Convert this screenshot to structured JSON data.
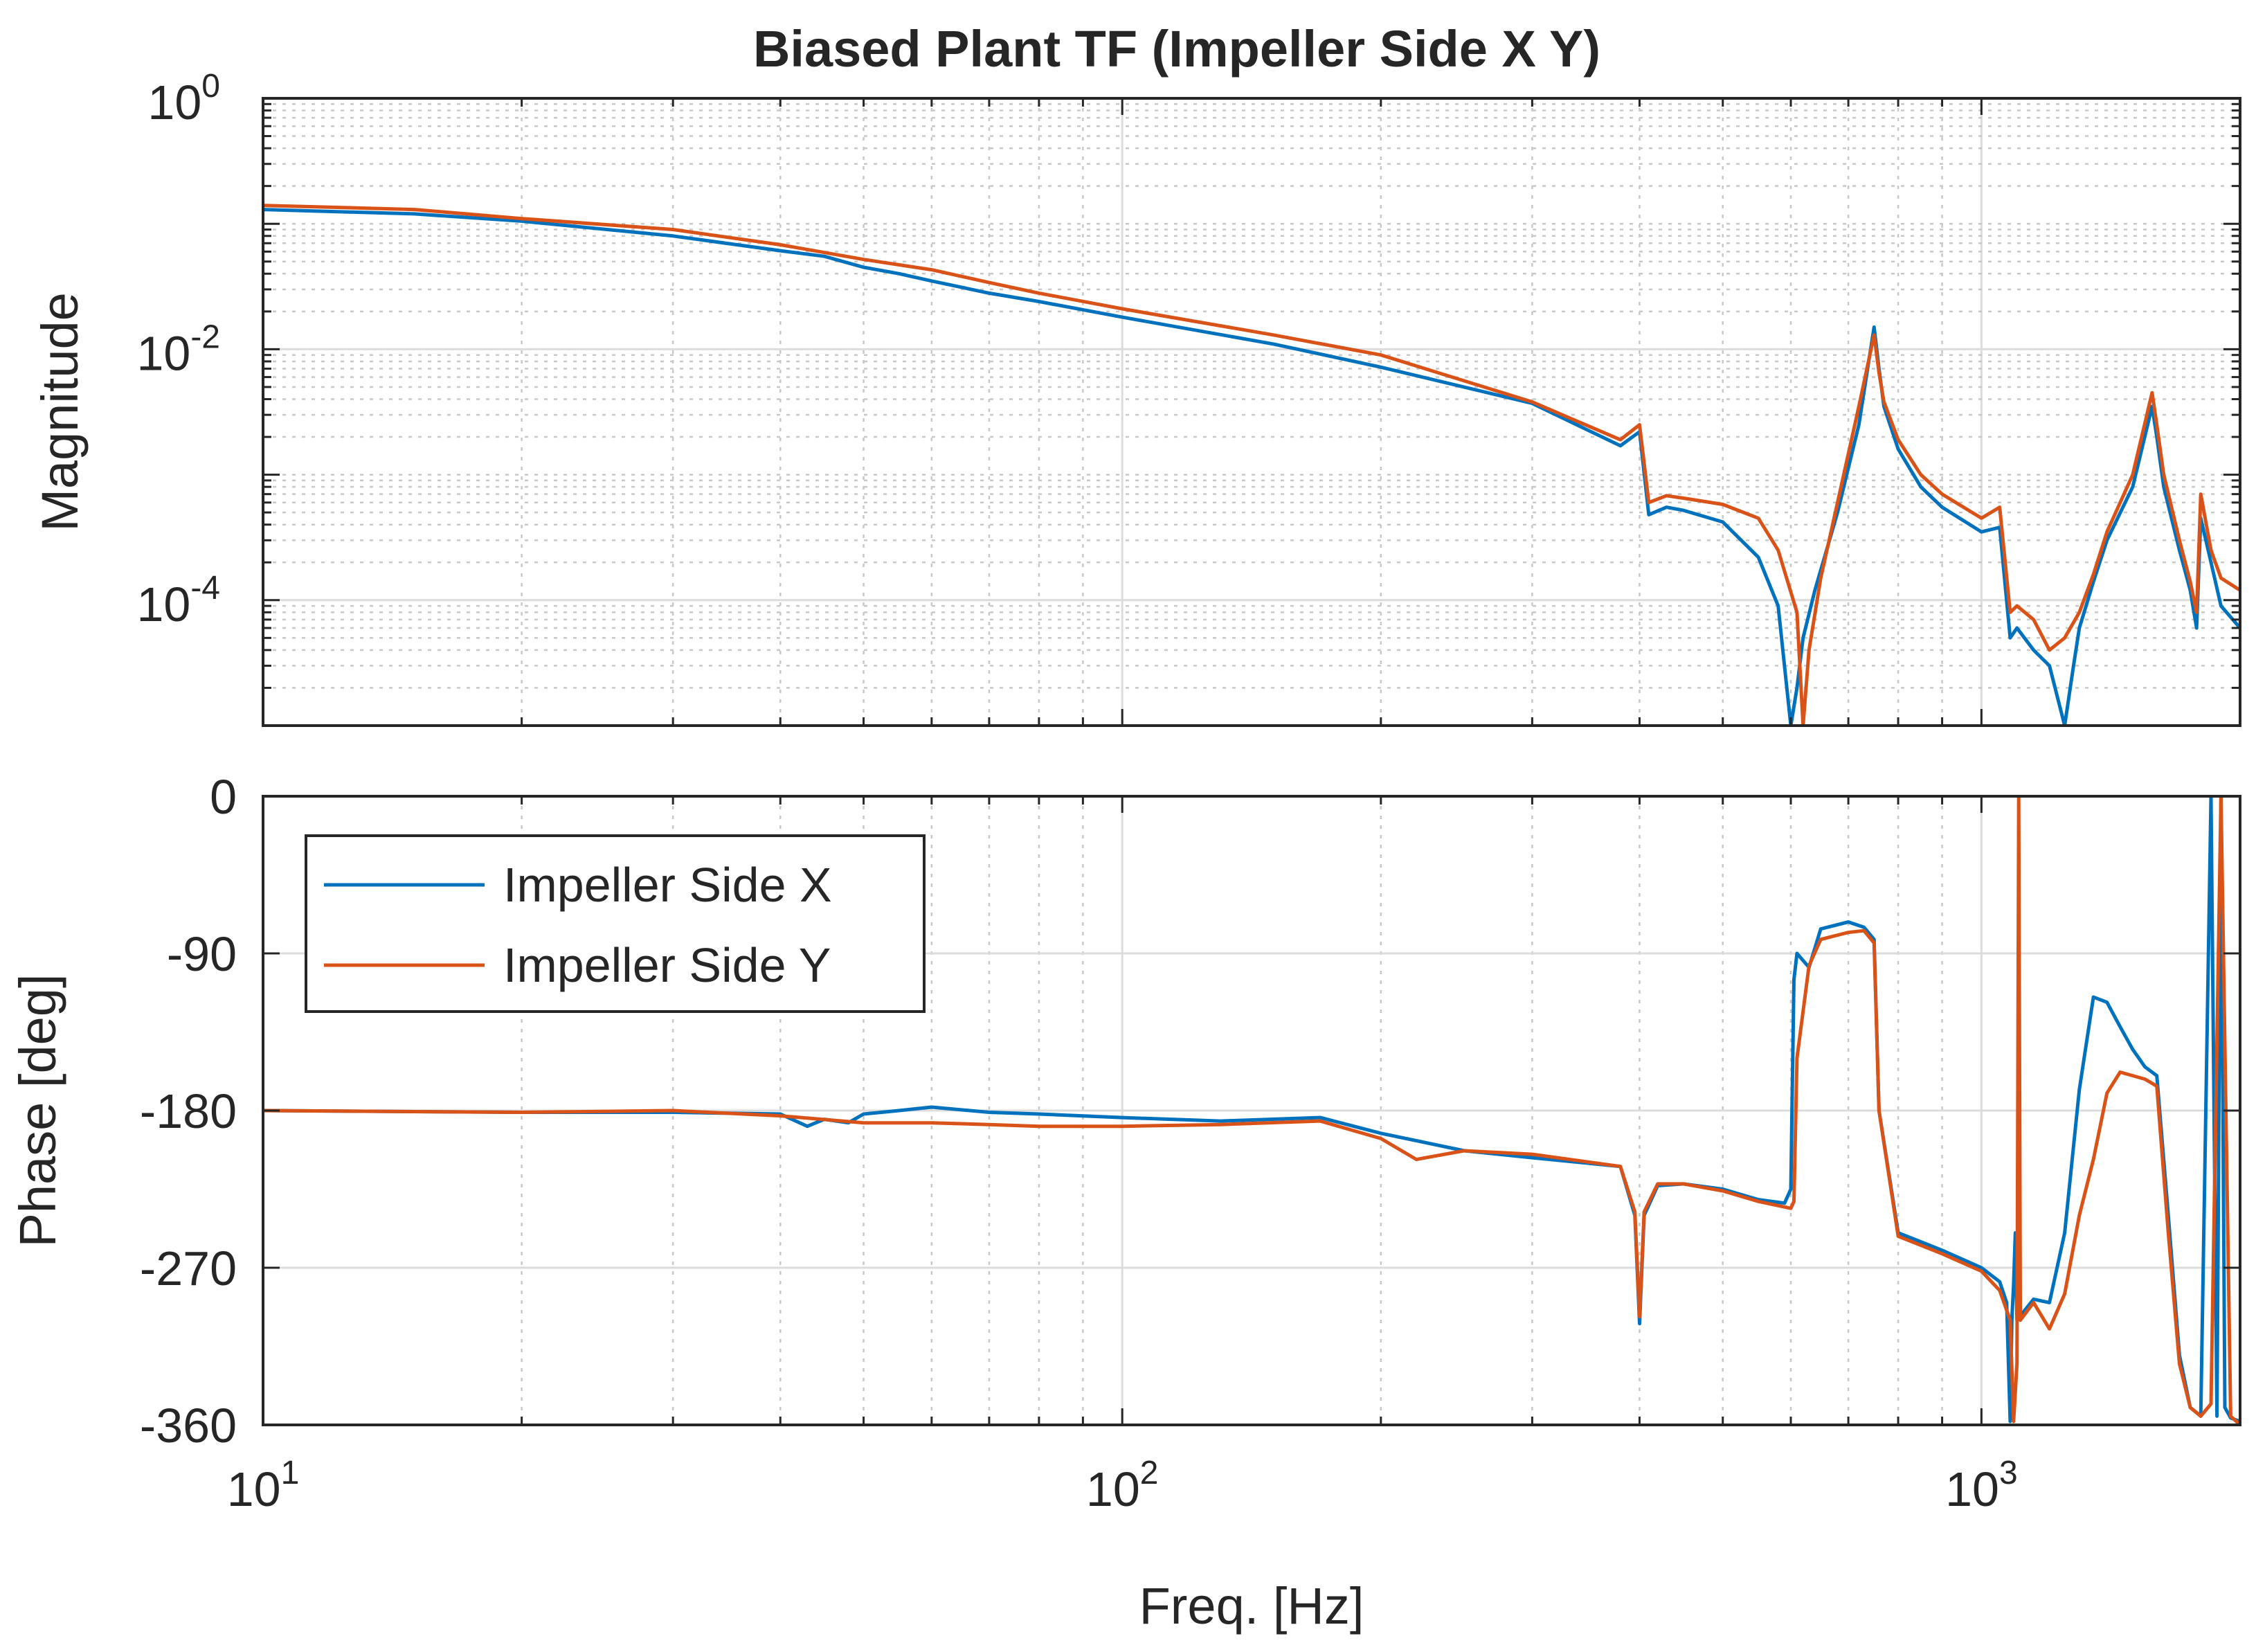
{
  "chart_data": [
    {
      "type": "line",
      "title": "Biased Plant TF (Impeller Side X Y)",
      "xlabel": "",
      "ylabel": "Magnitude",
      "xscale": "log",
      "yscale": "log",
      "xlim": [
        10,
        2000
      ],
      "ylim": [
        1e-05,
        1
      ],
      "grid": true,
      "y_ticks": [
        {
          "value": 1,
          "label": "10",
          "exp": "0"
        },
        {
          "value": 0.01,
          "label": "10",
          "exp": "-2"
        },
        {
          "value": 0.0001,
          "label": "10",
          "exp": "-4"
        }
      ],
      "series": [
        {
          "name": "Impeller Side X",
          "color": "#0072BD",
          "x": [
            10,
            15,
            20,
            30,
            40,
            45,
            50,
            55,
            60,
            70,
            80,
            100,
            150,
            200,
            300,
            380,
            400,
            410,
            430,
            450,
            500,
            550,
            580,
            600,
            610,
            620,
            640,
            680,
            720,
            750,
            760,
            770,
            800,
            850,
            900,
            1000,
            1050,
            1080,
            1100,
            1150,
            1200,
            1250,
            1280,
            1300,
            1350,
            1400,
            1500,
            1580,
            1600,
            1630,
            1700,
            1750,
            1780,
            1800,
            1850,
            1900,
            2000
          ],
          "y": [
            0.13,
            0.12,
            0.105,
            0.08,
            0.061,
            0.055,
            0.045,
            0.04,
            0.035,
            0.028,
            0.024,
            0.018,
            0.011,
            0.0072,
            0.0037,
            0.0017,
            0.0022,
            0.00048,
            0.00055,
            0.00052,
            0.00042,
            0.00022,
            9e-05,
            1e-05,
            2e-05,
            5e-05,
            0.00012,
            0.0005,
            0.0025,
            0.015,
            0.007,
            0.0035,
            0.0016,
            0.0008,
            0.00055,
            0.00035,
            0.00038,
            5e-05,
            6e-05,
            4e-05,
            3e-05,
            1e-05,
            3e-05,
            6e-05,
            0.00014,
            0.0003,
            0.0008,
            0.0035,
            0.002,
            0.0008,
            0.00025,
            0.00012,
            6e-05,
            0.00045,
            0.0002,
            9e-05,
            6e-05
          ]
        },
        {
          "name": "Impeller Side Y",
          "color": "#D95319",
          "x": [
            10,
            15,
            20,
            30,
            40,
            50,
            60,
            70,
            80,
            100,
            150,
            200,
            300,
            380,
            400,
            410,
            430,
            450,
            500,
            550,
            580,
            610,
            620,
            630,
            650,
            680,
            720,
            750,
            760,
            770,
            800,
            850,
            900,
            1000,
            1050,
            1080,
            1100,
            1150,
            1200,
            1250,
            1300,
            1350,
            1400,
            1500,
            1580,
            1600,
            1630,
            1700,
            1750,
            1780,
            1800,
            1850,
            1900,
            2000
          ],
          "y": [
            0.14,
            0.13,
            0.11,
            0.09,
            0.068,
            0.052,
            0.043,
            0.034,
            0.028,
            0.021,
            0.013,
            0.009,
            0.0038,
            0.0019,
            0.0025,
            0.0006,
            0.00068,
            0.00065,
            0.00058,
            0.00045,
            0.00025,
            8e-05,
            1e-05,
            4e-05,
            0.00015,
            0.0006,
            0.0035,
            0.013,
            0.0065,
            0.0038,
            0.0019,
            0.001,
            0.0007,
            0.00045,
            0.00055,
            8e-05,
            9e-05,
            7e-05,
            4e-05,
            5e-05,
            8e-05,
            0.00016,
            0.00035,
            0.001,
            0.0045,
            0.0025,
            0.001,
            0.0003,
            0.00014,
            8e-05,
            0.0007,
            0.00025,
            0.00015,
            0.00012
          ]
        }
      ]
    },
    {
      "type": "line",
      "title": "",
      "xlabel": "Freq. [Hz]",
      "ylabel": "Phase [deg]",
      "xscale": "log",
      "yscale": "linear",
      "xlim": [
        10,
        2000
      ],
      "ylim": [
        -360,
        0
      ],
      "grid": true,
      "x_ticks": [
        {
          "value": 10,
          "label": "10",
          "exp": "1"
        },
        {
          "value": 100,
          "label": "10",
          "exp": "2"
        },
        {
          "value": 1000,
          "label": "10",
          "exp": "3"
        }
      ],
      "y_ticks": [
        {
          "value": 0,
          "label": "0"
        },
        {
          "value": -90,
          "label": "-90"
        },
        {
          "value": -180,
          "label": "-180"
        },
        {
          "value": -270,
          "label": "-270"
        },
        {
          "value": -360,
          "label": "-360"
        }
      ],
      "legend": {
        "position": "top-left",
        "entries": [
          "Impeller Side X",
          "Impeller Side Y"
        ]
      },
      "series": [
        {
          "name": "Impeller Side X",
          "color": "#0072BD",
          "x": [
            10,
            20,
            30,
            40,
            43,
            45,
            48,
            50,
            55,
            60,
            70,
            80,
            100,
            130,
            170,
            200,
            250,
            300,
            380,
            395,
            400,
            405,
            420,
            450,
            500,
            550,
            590,
            600,
            605,
            610,
            630,
            650,
            700,
            730,
            750,
            760,
            800,
            900,
            1000,
            1050,
            1070,
            1080,
            1085,
            1090,
            1095,
            1100,
            1150,
            1200,
            1250,
            1300,
            1350,
            1400,
            1450,
            1500,
            1550,
            1600,
            1650,
            1700,
            1750,
            1800,
            1850,
            1880,
            1900,
            1920,
            1950,
            2000
          ],
          "y": [
            -180,
            -181,
            -181,
            -182,
            -189,
            -185,
            -187,
            -182,
            -180,
            -178,
            -181,
            -182,
            -184,
            -186,
            -184,
            -193,
            -203,
            -207,
            -212,
            -240,
            -302,
            -240,
            -223,
            -222,
            -225,
            -231,
            -233,
            -225,
            -105,
            -90,
            -98,
            -76,
            -72,
            -75,
            -82,
            -180,
            -250,
            -260,
            -270,
            -278,
            -290,
            -358,
            -300,
            -280,
            -250,
            -300,
            -288,
            -290,
            -250,
            -168,
            -115,
            -118,
            -132,
            -145,
            -155,
            -160,
            -240,
            -320,
            -350,
            -355,
            0,
            -355,
            0,
            -350,
            -356,
            -358
          ]
        },
        {
          "name": "Impeller Side Y",
          "color": "#D95319",
          "x": [
            10,
            20,
            30,
            40,
            50,
            60,
            70,
            80,
            100,
            130,
            170,
            200,
            220,
            250,
            300,
            380,
            395,
            400,
            405,
            420,
            450,
            500,
            550,
            600,
            605,
            610,
            630,
            650,
            700,
            730,
            750,
            760,
            800,
            900,
            1000,
            1050,
            1080,
            1090,
            1100,
            1105,
            1110,
            1150,
            1200,
            1250,
            1300,
            1350,
            1400,
            1450,
            1500,
            1550,
            1600,
            1650,
            1700,
            1750,
            1800,
            1850,
            1900,
            1950,
            2000
          ],
          "y": [
            -180,
            -181,
            -180,
            -183,
            -187,
            -187,
            -188,
            -189,
            -189,
            -188,
            -186,
            -196,
            -208,
            -203,
            -205,
            -212,
            -238,
            -298,
            -238,
            -222,
            -222,
            -226,
            -232,
            -236,
            -232,
            -150,
            -97,
            -82,
            -78,
            -77,
            -84,
            -180,
            -252,
            -262,
            -272,
            -283,
            -300,
            -358,
            -325,
            0,
            -300,
            -290,
            -305,
            -285,
            -240,
            -208,
            -170,
            -158,
            -160,
            -162,
            -166,
            -250,
            -325,
            -350,
            -355,
            -348,
            0,
            -355,
            -360
          ]
        }
      ]
    }
  ]
}
